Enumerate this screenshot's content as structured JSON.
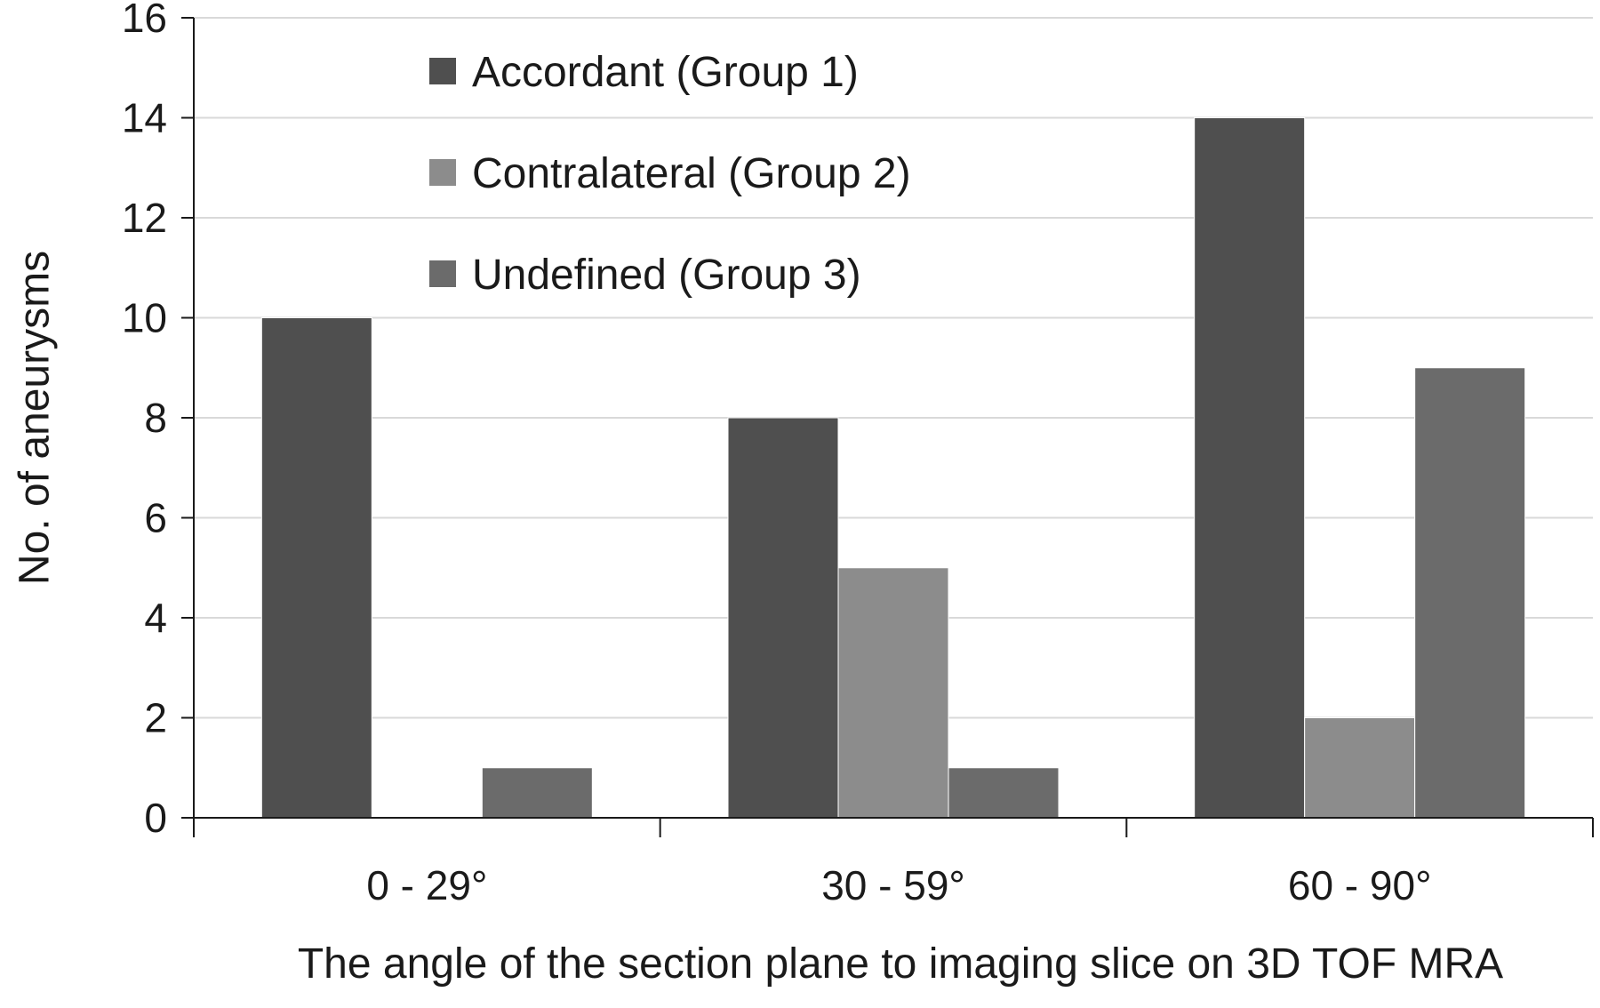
{
  "chart_data": {
    "type": "bar",
    "categories": [
      "0 - 29°",
      "30 - 59°",
      "60 - 90°"
    ],
    "series": [
      {
        "name": "Accordant (Group 1)",
        "values": [
          10,
          8,
          14
        ],
        "color": "#4f4f4f"
      },
      {
        "name": "Contralateral (Group 2)",
        "values": [
          0,
          5,
          2
        ],
        "color": "#8c8c8c"
      },
      {
        "name": "Undefined (Group 3)",
        "values": [
          1,
          1,
          9
        ],
        "color": "#6b6b6b"
      }
    ],
    "title": "",
    "xlabel": "The angle of the section plane to imaging slice on 3D TOF MRA",
    "ylabel": "No. of aneurysms",
    "ylim": [
      0,
      16
    ],
    "yticks": [
      0,
      2,
      4,
      6,
      8,
      10,
      12,
      14,
      16
    ],
    "grid": true,
    "legend_position": "top-left"
  }
}
